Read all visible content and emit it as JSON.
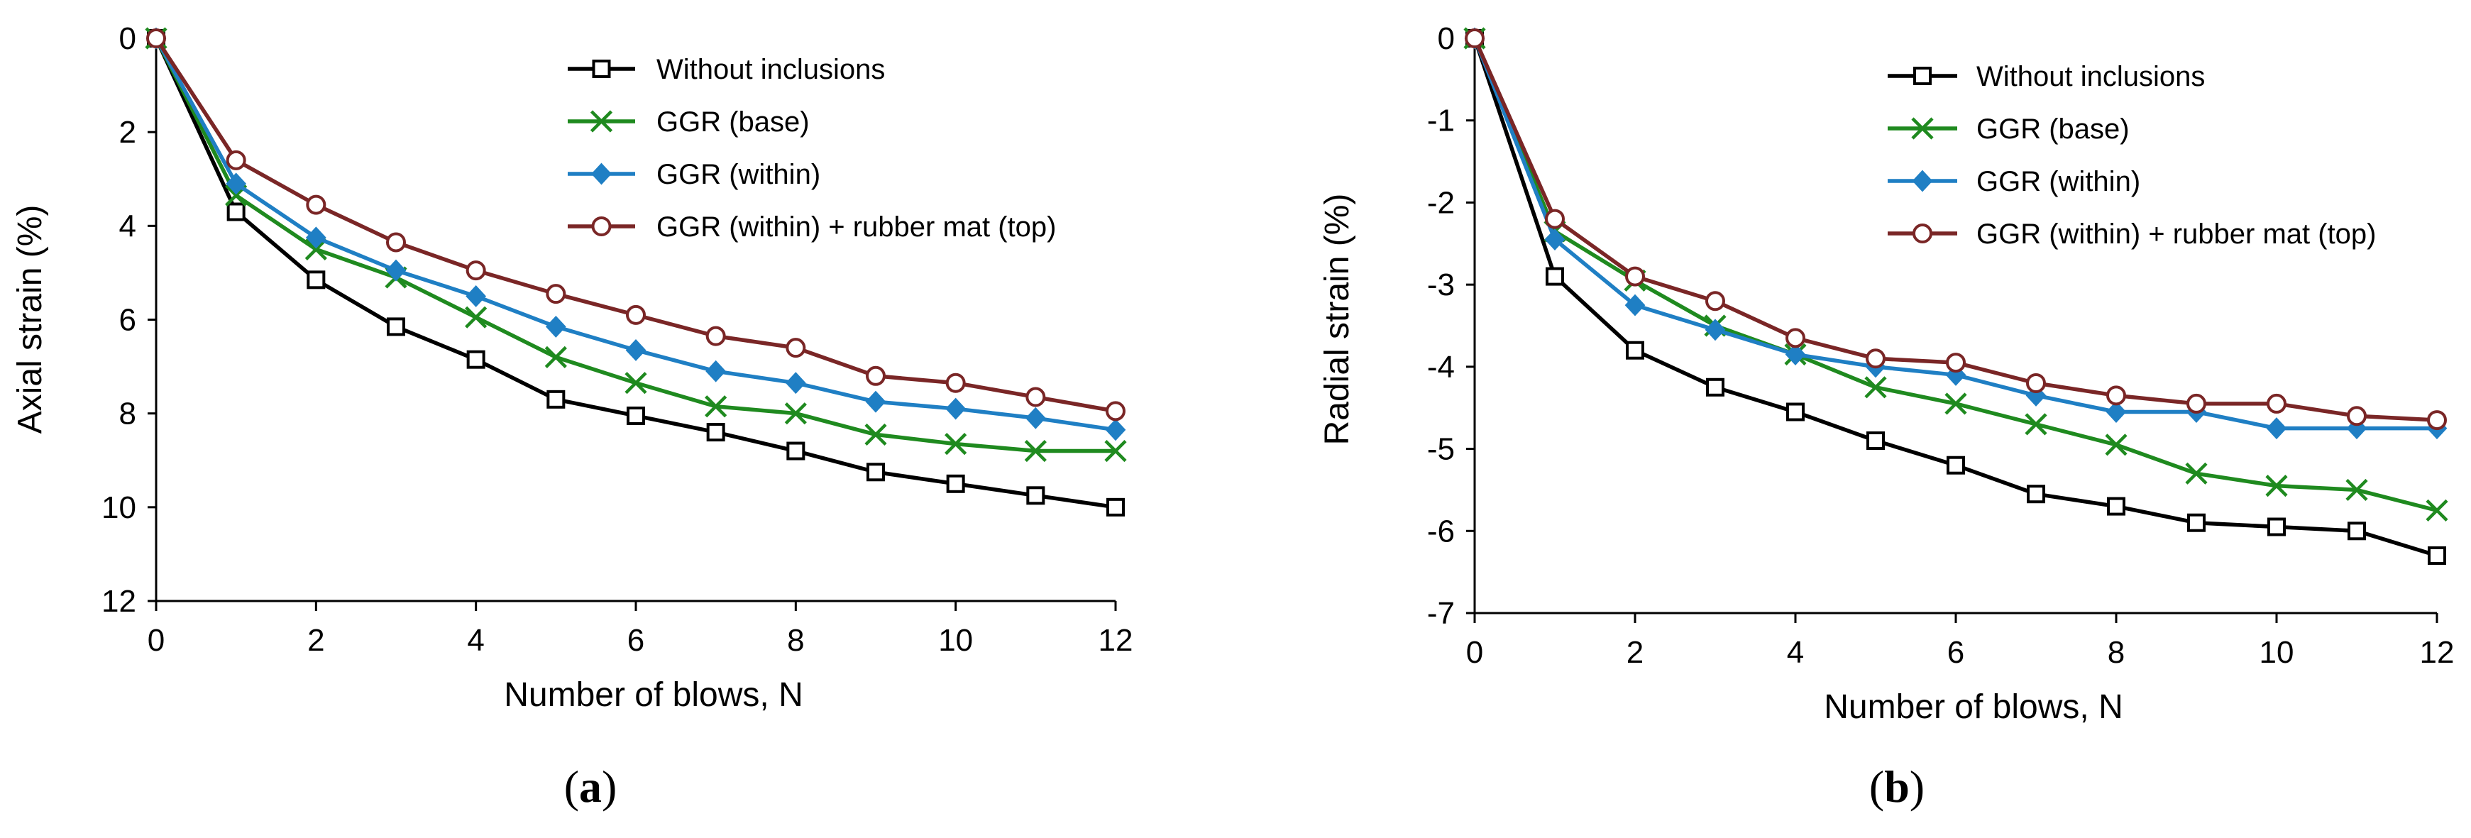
{
  "colors": {
    "without": "#000000",
    "base": "#1f8a1f",
    "within": "#1f7fc4",
    "rubber": "#7a2626"
  },
  "chart_data": [
    {
      "type": "line",
      "panel_label": "a",
      "xlabel": "Number of blows,  N",
      "ylabel": "Axial strain (%)",
      "xlim": [
        0,
        12
      ],
      "ylim": [
        0,
        12
      ],
      "y_inverted": true,
      "xticks": [
        0,
        2,
        4,
        6,
        8,
        10,
        12
      ],
      "yticks": [
        0,
        2,
        4,
        6,
        8,
        10,
        12
      ],
      "grid": false,
      "legend_position": "top-right",
      "x": [
        0,
        1,
        2,
        3,
        4,
        5,
        6,
        7,
        8,
        9,
        10,
        11,
        12
      ],
      "series": [
        {
          "name": "Without inclusions",
          "marker": "open-square",
          "color": "#000000",
          "values": [
            0,
            3.7,
            5.15,
            6.15,
            6.85,
            7.7,
            8.05,
            8.4,
            8.8,
            9.25,
            9.5,
            9.75,
            10.0
          ]
        },
        {
          "name": "GGR (base)",
          "marker": "x",
          "color": "#1f8a1f",
          "values": [
            0,
            3.35,
            4.5,
            5.1,
            5.95,
            6.8,
            7.35,
            7.85,
            8.0,
            8.45,
            8.65,
            8.8,
            8.8
          ]
        },
        {
          "name": "GGR (within)",
          "marker": "filled-diamond",
          "color": "#1f7fc4",
          "values": [
            0,
            3.1,
            4.25,
            4.95,
            5.5,
            6.15,
            6.65,
            7.1,
            7.35,
            7.75,
            7.9,
            8.1,
            8.35
          ]
        },
        {
          "name": "GGR (within) + rubber mat (top)",
          "marker": "open-circle",
          "color": "#7a2626",
          "values": [
            0,
            2.6,
            3.55,
            4.35,
            4.95,
            5.45,
            5.9,
            6.35,
            6.6,
            7.2,
            7.35,
            7.65,
            7.95
          ]
        }
      ]
    },
    {
      "type": "line",
      "panel_label": "b",
      "xlabel": "Number of blows,  N",
      "ylabel": "Radial strain (%)",
      "xlim": [
        0,
        12
      ],
      "ylim": [
        -7,
        0
      ],
      "y_inverted": false,
      "xticks": [
        0,
        2,
        4,
        6,
        8,
        10,
        12
      ],
      "yticks": [
        0,
        -1,
        -2,
        -3,
        -4,
        -5,
        -6,
        -7
      ],
      "grid": false,
      "legend_position": "top-right",
      "x": [
        0,
        1,
        2,
        3,
        4,
        5,
        6,
        7,
        8,
        9,
        10,
        11,
        12
      ],
      "series": [
        {
          "name": "Without inclusions",
          "marker": "open-square",
          "color": "#000000",
          "values": [
            0,
            -2.9,
            -3.8,
            -4.25,
            -4.55,
            -4.9,
            -5.2,
            -5.55,
            -5.7,
            -5.9,
            -5.95,
            -6.0,
            -6.3
          ]
        },
        {
          "name": "GGR (base)",
          "marker": "x",
          "color": "#1f8a1f",
          "values": [
            0,
            -2.35,
            -2.95,
            -3.5,
            -3.85,
            -4.25,
            -4.45,
            -4.7,
            -4.95,
            -5.3,
            -5.45,
            -5.5,
            -5.75
          ]
        },
        {
          "name": "GGR (within)",
          "marker": "filled-diamond",
          "color": "#1f7fc4",
          "values": [
            0,
            -2.45,
            -3.25,
            -3.55,
            -3.85,
            -4.0,
            -4.1,
            -4.35,
            -4.55,
            -4.55,
            -4.75,
            -4.75,
            -4.75
          ]
        },
        {
          "name": "GGR (within) + rubber mat (top)",
          "marker": "open-circle",
          "color": "#7a2626",
          "values": [
            0,
            -2.2,
            -2.9,
            -3.2,
            -3.65,
            -3.9,
            -3.95,
            -4.2,
            -4.35,
            -4.45,
            -4.45,
            -4.6,
            -4.65
          ]
        }
      ]
    }
  ]
}
